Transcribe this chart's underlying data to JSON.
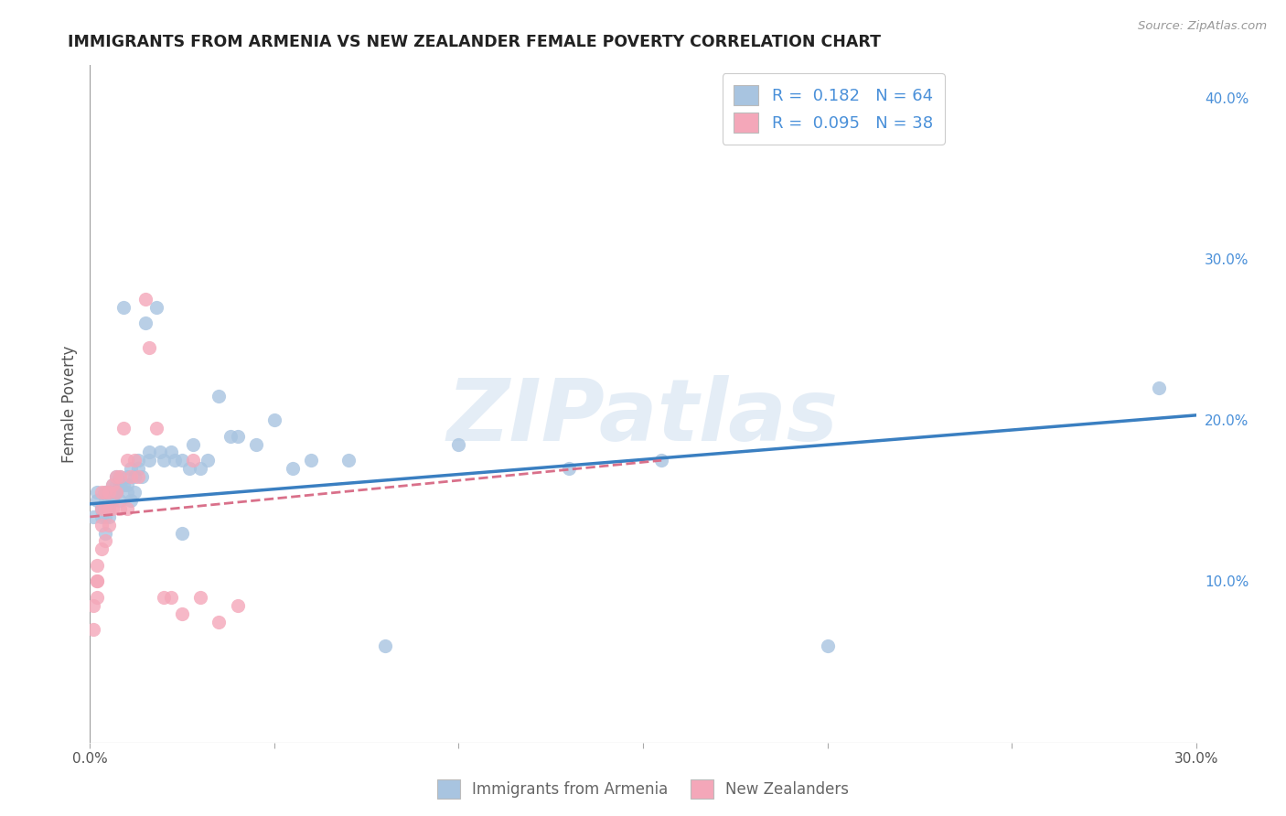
{
  "title": "IMMIGRANTS FROM ARMENIA VS NEW ZEALANDER FEMALE POVERTY CORRELATION CHART",
  "source": "Source: ZipAtlas.com",
  "ylabel": "Female Poverty",
  "watermark": "ZIPatlas",
  "xlim": [
    0.0,
    0.3
  ],
  "ylim": [
    0.0,
    0.42
  ],
  "color_blue": "#a8c4e0",
  "color_pink": "#f4a7b9",
  "line_color_blue": "#3a7fc1",
  "line_color_pink": "#d9708a",
  "armenia_x": [
    0.001,
    0.002,
    0.002,
    0.003,
    0.003,
    0.003,
    0.004,
    0.004,
    0.004,
    0.004,
    0.005,
    0.005,
    0.005,
    0.005,
    0.006,
    0.006,
    0.006,
    0.007,
    0.007,
    0.007,
    0.007,
    0.008,
    0.008,
    0.008,
    0.009,
    0.009,
    0.01,
    0.01,
    0.01,
    0.011,
    0.011,
    0.012,
    0.012,
    0.013,
    0.013,
    0.014,
    0.015,
    0.016,
    0.016,
    0.018,
    0.019,
    0.02,
    0.022,
    0.023,
    0.025,
    0.025,
    0.027,
    0.028,
    0.03,
    0.032,
    0.035,
    0.038,
    0.04,
    0.045,
    0.05,
    0.055,
    0.06,
    0.07,
    0.08,
    0.1,
    0.13,
    0.155,
    0.2,
    0.29
  ],
  "armenia_y": [
    0.14,
    0.155,
    0.15,
    0.14,
    0.145,
    0.145,
    0.13,
    0.14,
    0.15,
    0.155,
    0.14,
    0.145,
    0.15,
    0.155,
    0.15,
    0.155,
    0.16,
    0.155,
    0.155,
    0.16,
    0.165,
    0.15,
    0.16,
    0.165,
    0.16,
    0.27,
    0.155,
    0.16,
    0.165,
    0.17,
    0.15,
    0.155,
    0.165,
    0.17,
    0.175,
    0.165,
    0.26,
    0.175,
    0.18,
    0.27,
    0.18,
    0.175,
    0.18,
    0.175,
    0.13,
    0.175,
    0.17,
    0.185,
    0.17,
    0.175,
    0.215,
    0.19,
    0.19,
    0.185,
    0.2,
    0.17,
    0.175,
    0.175,
    0.06,
    0.185,
    0.17,
    0.175,
    0.06,
    0.22
  ],
  "nz_x": [
    0.001,
    0.001,
    0.002,
    0.002,
    0.002,
    0.002,
    0.003,
    0.003,
    0.003,
    0.003,
    0.004,
    0.004,
    0.004,
    0.005,
    0.005,
    0.005,
    0.006,
    0.006,
    0.007,
    0.007,
    0.008,
    0.008,
    0.009,
    0.01,
    0.01,
    0.011,
    0.012,
    0.013,
    0.015,
    0.016,
    0.018,
    0.02,
    0.022,
    0.025,
    0.028,
    0.03,
    0.035,
    0.04
  ],
  "nz_y": [
    0.07,
    0.085,
    0.09,
    0.1,
    0.1,
    0.11,
    0.12,
    0.135,
    0.145,
    0.155,
    0.125,
    0.145,
    0.155,
    0.135,
    0.145,
    0.155,
    0.145,
    0.16,
    0.155,
    0.165,
    0.145,
    0.165,
    0.195,
    0.145,
    0.175,
    0.165,
    0.175,
    0.165,
    0.275,
    0.245,
    0.195,
    0.09,
    0.09,
    0.08,
    0.175,
    0.09,
    0.075,
    0.085
  ],
  "arm_line_x0": 0.0,
  "arm_line_x1": 0.3,
  "arm_line_y0": 0.148,
  "arm_line_y1": 0.203,
  "nz_line_x0": 0.0,
  "nz_line_x1": 0.155,
  "nz_line_y0": 0.14,
  "nz_line_y1": 0.175
}
